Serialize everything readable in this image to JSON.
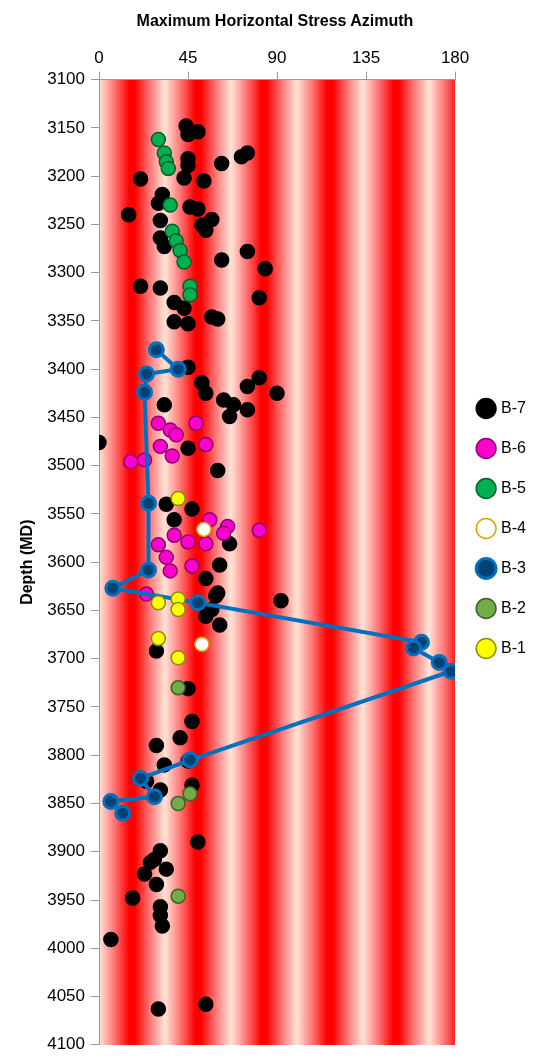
{
  "chart_data": {
    "type": "scatter",
    "title": "Maximum Horizontal Stress Azimuth",
    "ylabel": "Depth (MD)",
    "xlim": [
      0,
      180
    ],
    "xticks": [
      0,
      45,
      90,
      135,
      180
    ],
    "ylim": [
      4100,
      3100
    ],
    "yticks": [
      3100,
      3150,
      3200,
      3250,
      3300,
      3350,
      3400,
      3450,
      3500,
      3550,
      3600,
      3650,
      3700,
      3750,
      3800,
      3850,
      3900,
      3950,
      4000,
      4050,
      4100
    ],
    "grid": false,
    "legend": "right",
    "marker": "circle",
    "series": [
      {
        "name": "B-7",
        "color": "#000000",
        "x": [
          44,
          50,
          45,
          75,
          72,
          45,
          62,
          45,
          21,
          43,
          53,
          32,
          30,
          46,
          50,
          15,
          31,
          57,
          52,
          54,
          31,
          33,
          75,
          62,
          84,
          21,
          31,
          81,
          38,
          43,
          57,
          38,
          45,
          60,
          45,
          52,
          81,
          75,
          90,
          54,
          63,
          68,
          75,
          66,
          33,
          0,
          45,
          60,
          34,
          47,
          38,
          66,
          61,
          54,
          60,
          92,
          59,
          57,
          54,
          61,
          29,
          45,
          47,
          41,
          29,
          33,
          45,
          24,
          31,
          47,
          50,
          31,
          28,
          26,
          34,
          23,
          29,
          17,
          31,
          31,
          32,
          6,
          30,
          54
        ],
        "values": [
          3148,
          3154,
          3157,
          3176,
          3180,
          3182,
          3187,
          3189,
          3203,
          3202,
          3205,
          3219,
          3228,
          3232,
          3234,
          3240,
          3246,
          3245,
          3251,
          3256,
          3264,
          3273,
          3278,
          3287,
          3296,
          3314,
          3316,
          3326,
          3331,
          3337,
          3346,
          3351,
          3353,
          3348,
          3398,
          3414,
          3409,
          3418,
          3425,
          3425,
          3432,
          3437,
          3442,
          3449,
          3437,
          3476,
          3482,
          3505,
          3540,
          3545,
          3556,
          3581,
          3603,
          3617,
          3632,
          3640,
          3635,
          3649,
          3656,
          3665,
          3692,
          3731,
          3765,
          3782,
          3790,
          3810,
          3806,
          3827,
          3836,
          3831,
          3890,
          3899,
          3908,
          3911,
          3918,
          3923,
          3934,
          3948,
          3957,
          3966,
          3977,
          3991,
          4063,
          4058
        ]
      },
      {
        "name": "B-6",
        "color": "#ff00cc",
        "x": [
          30,
          49,
          36,
          39,
          54,
          31,
          16,
          23,
          37,
          56,
          65,
          81,
          63,
          38,
          30,
          45,
          54,
          34,
          47,
          36,
          24
        ],
        "values": [
          3456,
          3456,
          3463,
          3468,
          3478,
          3480,
          3496,
          3494,
          3490,
          3556,
          3563,
          3567,
          3570,
          3572,
          3582,
          3579,
          3581,
          3595,
          3604,
          3609,
          3633
        ]
      },
      {
        "name": "B-5",
        "color": "#00b050",
        "x": [
          30,
          33,
          34,
          35,
          36,
          37,
          39,
          41,
          43,
          45,
          46,
          46
        ],
        "values": [
          3162,
          3176,
          3185,
          3192,
          3230,
          3257,
          3267,
          3277,
          3289,
          null,
          3314,
          3323
        ]
      },
      {
        "name": "B-4",
        "color": "#ffffff",
        "x": [
          53,
          52
        ],
        "values": [
          3566,
          3685
        ]
      },
      {
        "name": "B-3",
        "type": "line",
        "color": "#0070c0",
        "x": [
          29,
          40,
          24,
          23,
          25,
          25,
          7,
          50,
          163,
          159,
          172,
          178,
          46,
          21,
          28,
          6,
          12
        ],
        "values": [
          3380,
          3400,
          3405,
          3424,
          3539,
          3608,
          3627,
          3642,
          3683,
          3689,
          3704,
          3713,
          3805,
          3824,
          3843,
          3848,
          3860
        ]
      },
      {
        "name": "B-2",
        "color": "#70ad47",
        "x": [
          40,
          46,
          40,
          40
        ],
        "values": [
          3730,
          3840,
          3850,
          3946
        ]
      },
      {
        "name": "B-1",
        "color": "#ffff00",
        "x": [
          40,
          30,
          40,
          40,
          30,
          40
        ],
        "values": [
          3534,
          3642,
          3638,
          3649,
          3679,
          3699
        ]
      }
    ]
  }
}
